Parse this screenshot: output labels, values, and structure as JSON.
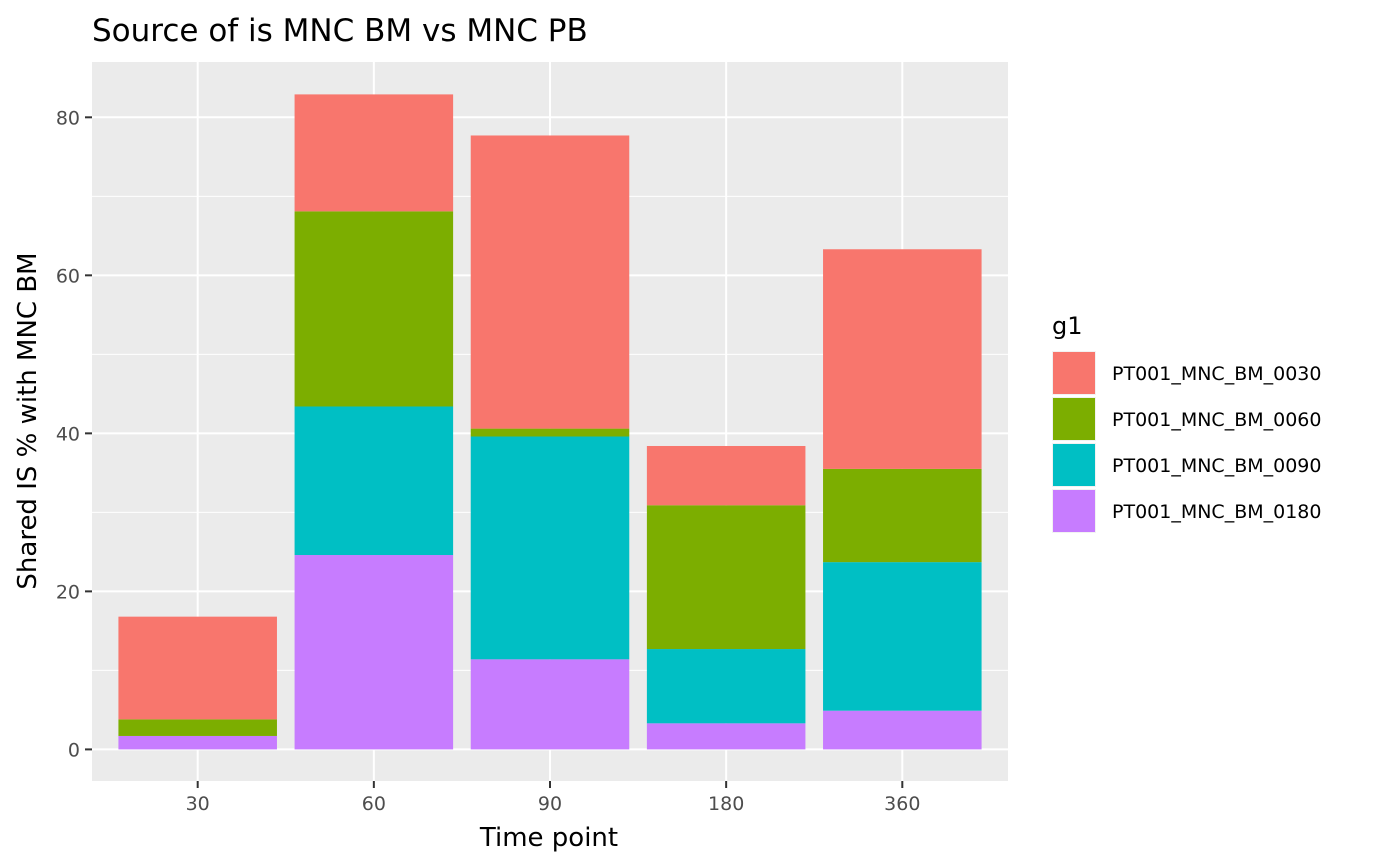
{
  "chart_data": {
    "type": "bar",
    "stacked": true,
    "title": "Source of is MNC BM vs MNC PB",
    "xlabel": "Time point",
    "ylabel": "Shared IS % with MNC BM",
    "categories": [
      "30",
      "60",
      "90",
      "180",
      "360"
    ],
    "ylim": [
      -4,
      87
    ],
    "yticks": [
      0,
      20,
      40,
      60,
      80
    ],
    "grid": true,
    "legend": {
      "title": "g1",
      "position": "right"
    },
    "series": [
      {
        "name": "PT001_MNC_BM_0180",
        "color": "#C77CFF",
        "values": [
          1.7,
          24.6,
          11.4,
          3.3,
          4.9
        ]
      },
      {
        "name": "PT001_MNC_BM_0090",
        "color": "#00BFC4",
        "values": [
          0,
          18.8,
          28.2,
          9.4,
          18.8
        ]
      },
      {
        "name": "PT001_MNC_BM_0060",
        "color": "#7CAE00",
        "values": [
          2.1,
          24.7,
          1.0,
          18.2,
          11.8
        ]
      },
      {
        "name": "PT001_MNC_BM_0030",
        "color": "#F8766D",
        "values": [
          13.0,
          14.8,
          37.1,
          7.5,
          27.8
        ]
      }
    ],
    "legend_order": [
      "PT001_MNC_BM_0030",
      "PT001_MNC_BM_0060",
      "PT001_MNC_BM_0090",
      "PT001_MNC_BM_0180"
    ]
  }
}
